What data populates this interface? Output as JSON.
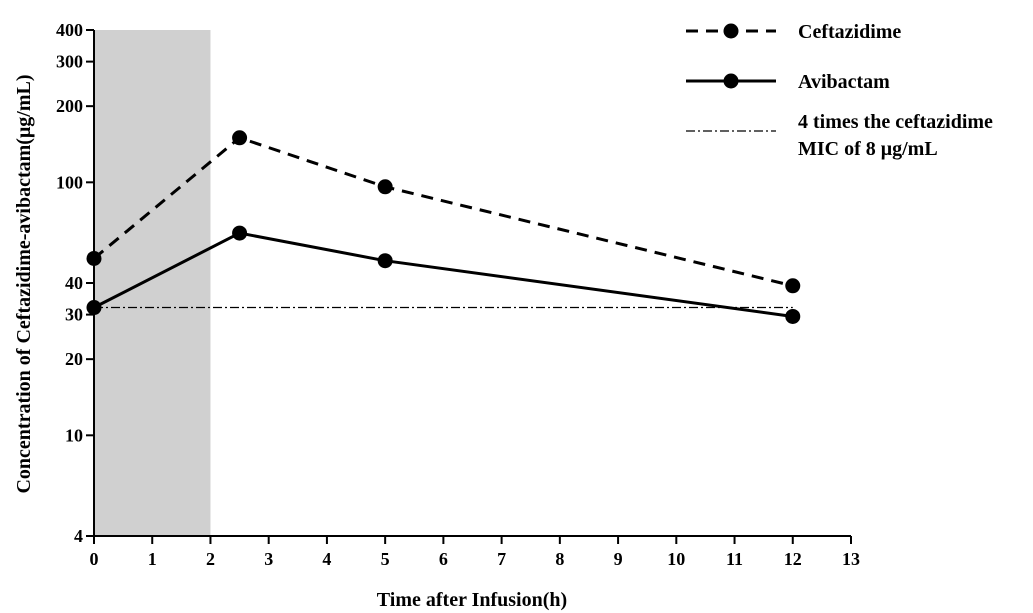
{
  "chart_data": {
    "type": "line",
    "xlabel": "Time after Infusion(h)",
    "ylabel": "Concentration of Ceftazidime-avibactam(μg/mL)",
    "xlim": [
      0,
      13
    ],
    "ylim": [
      4,
      400
    ],
    "y_scale": "log",
    "x_ticks": [
      0,
      1,
      2,
      3,
      4,
      5,
      6,
      7,
      8,
      9,
      10,
      11,
      12,
      13
    ],
    "y_ticks": [
      4,
      10,
      20,
      30,
      40,
      100,
      200,
      300,
      400
    ],
    "shaded_region": {
      "x_start": 0,
      "x_end": 2,
      "color": "#d0d0d0"
    },
    "series": [
      {
        "name": "Ceftazidime",
        "style": "dashed",
        "x": [
          0,
          2.5,
          5,
          12
        ],
        "y": [
          50,
          150,
          96,
          39
        ]
      },
      {
        "name": "Avibactam",
        "style": "solid",
        "x": [
          0,
          2.5,
          5,
          12
        ],
        "y": [
          32,
          63,
          49,
          29.5
        ]
      }
    ],
    "reference_line": {
      "label": "4 times the ceftazidime MIC of 8 μg/mL",
      "label_lines": [
        "4 times the ceftazidime",
        "MIC of 8 μg/mL"
      ],
      "y": 32,
      "style": "dash-dot"
    },
    "legend": {
      "position": "top-right"
    },
    "grid": false,
    "colors": {
      "line": "#000000",
      "shade": "#d0d0d0"
    }
  }
}
